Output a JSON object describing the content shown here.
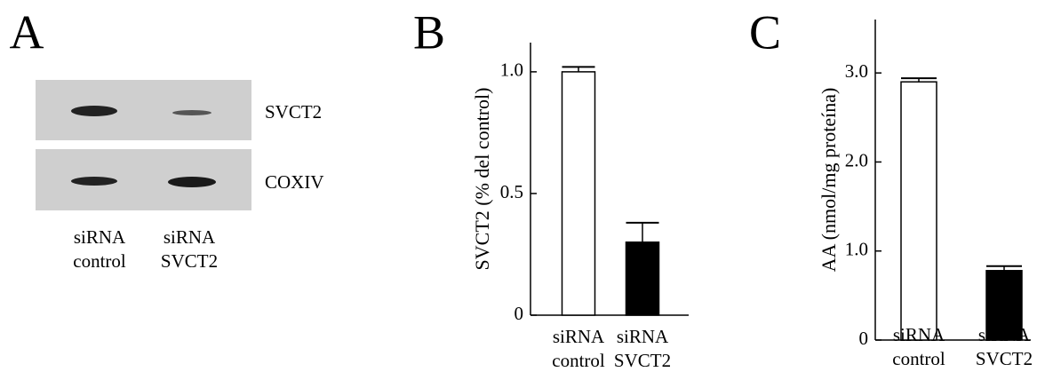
{
  "blot": {
    "panel_label": "A",
    "bands": [
      "SVCT2",
      "COXIV"
    ],
    "lanes": [
      "siRNA control",
      "siRNA SVCT2"
    ]
  },
  "chart_data": [
    {
      "type": "bar",
      "panel_label": "B",
      "ylabel": "SVCT2  (% del control)",
      "categories": [
        "siRNA control",
        "siRNA SVCT2"
      ],
      "values": [
        1.0,
        0.3
      ],
      "errors": [
        0.02,
        0.08
      ],
      "colors": [
        "#ffffff",
        "#000000"
      ],
      "ylim": [
        0,
        1.12
      ],
      "yticks": [
        0,
        0.5,
        {
          "value": 1,
          "label": "1.0"
        }
      ]
    },
    {
      "type": "bar",
      "panel_label": "C",
      "ylabel": "AA (nmol/mg proteína)",
      "categories": [
        "siRNA control",
        "siRNA SVCT2"
      ],
      "values": [
        2.9,
        0.78
      ],
      "errors": [
        0.04,
        0.05
      ],
      "colors": [
        "#ffffff",
        "#000000"
      ],
      "ylim": [
        0,
        3.6
      ],
      "yticks": [
        0,
        {
          "value": 1,
          "label": "1.0"
        },
        {
          "value": 2,
          "label": "2.0"
        },
        {
          "value": 3,
          "label": "3.0"
        }
      ]
    }
  ]
}
